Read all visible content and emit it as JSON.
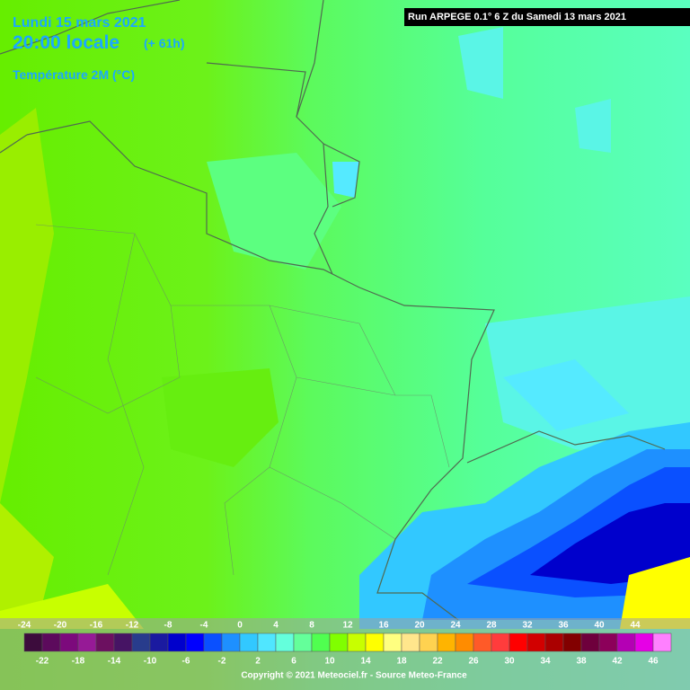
{
  "header": {
    "date": "Lundi 15 mars 2021",
    "time": "20:00 locale",
    "lead": "(+ 61h)",
    "parameter": "Température 2M (°C)",
    "run": "Run ARPEGE 0.1° 6 Z du Samedi 13 mars 2021"
  },
  "legend": {
    "steps": [
      {
        "value": -24,
        "color": "#3c0c3c"
      },
      {
        "value": -22,
        "color": "#5c0a5c"
      },
      {
        "value": -20,
        "color": "#7c0a7c"
      },
      {
        "value": -18,
        "color": "#961a96"
      },
      {
        "value": -16,
        "color": "#6c1060"
      },
      {
        "value": -14,
        "color": "#461464"
      },
      {
        "value": -12,
        "color": "#283c8c"
      },
      {
        "value": -10,
        "color": "#1a1aa0"
      },
      {
        "value": -8,
        "color": "#0000cc"
      },
      {
        "value": -6,
        "color": "#0000ff"
      },
      {
        "value": -4,
        "color": "#0a50ff"
      },
      {
        "value": -2,
        "color": "#1e90ff"
      },
      {
        "value": 0,
        "color": "#32c8ff"
      },
      {
        "value": 2,
        "color": "#50e6ff"
      },
      {
        "value": 4,
        "color": "#64ffdc"
      },
      {
        "value": 6,
        "color": "#64ff9a"
      },
      {
        "value": 8,
        "color": "#50ff50"
      },
      {
        "value": 10,
        "color": "#80ff00"
      },
      {
        "value": 12,
        "color": "#c8ff00"
      },
      {
        "value": 14,
        "color": "#ffff00"
      },
      {
        "value": 16,
        "color": "#ffff80"
      },
      {
        "value": 18,
        "color": "#ffe68c"
      },
      {
        "value": 20,
        "color": "#ffd250"
      },
      {
        "value": 22,
        "color": "#ffb400"
      },
      {
        "value": 24,
        "color": "#ff8c00"
      },
      {
        "value": 26,
        "color": "#ff5a28"
      },
      {
        "value": 28,
        "color": "#ff3c3c"
      },
      {
        "value": 30,
        "color": "#ff0000"
      },
      {
        "value": 32,
        "color": "#d20000"
      },
      {
        "value": 34,
        "color": "#aa0000"
      },
      {
        "value": 36,
        "color": "#820000"
      },
      {
        "value": 38,
        "color": "#6e003c"
      },
      {
        "value": 40,
        "color": "#8c005a"
      },
      {
        "value": 42,
        "color": "#b400b4"
      },
      {
        "value": 44,
        "color": "#e600e6"
      },
      {
        "value": 46,
        "color": "#ff80ff"
      }
    ]
  },
  "footer": {
    "copyright": "Copyright © 2021 Meteociel.fr - Source Meteo-France"
  }
}
